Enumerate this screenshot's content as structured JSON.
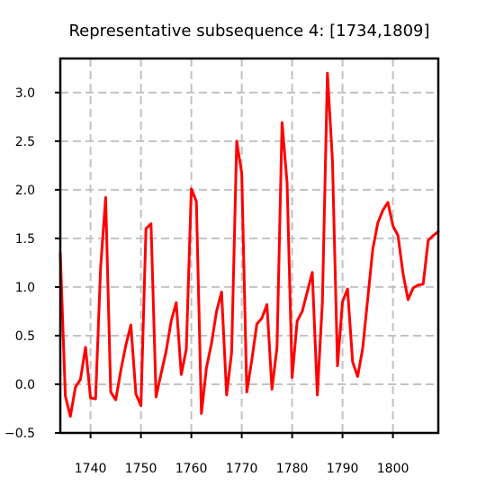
{
  "chart_data": {
    "type": "line",
    "title": "Representative subsequence 4: [1734,1809]",
    "xlabel": "",
    "ylabel": "",
    "xlim": [
      1734,
      1809
    ],
    "ylim": [
      -0.5,
      3.35
    ],
    "x_ticks": [
      1740,
      1750,
      1760,
      1770,
      1780,
      1790,
      1800
    ],
    "x_tick_labels": [
      "1740",
      "1750",
      "1760",
      "1770",
      "1780",
      "1790",
      "1800"
    ],
    "y_ticks": [
      -0.5,
      0.0,
      0.5,
      1.0,
      1.5,
      2.0,
      2.5,
      3.0
    ],
    "y_tick_labels": [
      "−0.5",
      "0.0",
      "0.5",
      "1.0",
      "1.5",
      "2.0",
      "2.5",
      "3.0"
    ],
    "grid": true,
    "series": [
      {
        "color": "#ff0000",
        "x": [
          1734,
          1735,
          1736,
          1737,
          1738,
          1739,
          1740,
          1741,
          1742,
          1743,
          1744,
          1745,
          1746,
          1747,
          1748,
          1749,
          1750,
          1751,
          1752,
          1753,
          1754,
          1755,
          1756,
          1757,
          1758,
          1759,
          1760,
          1761,
          1762,
          1763,
          1764,
          1765,
          1766,
          1767,
          1768,
          1769,
          1770,
          1771,
          1772,
          1773,
          1774,
          1775,
          1776,
          1777,
          1778,
          1779,
          1780,
          1781,
          1782,
          1783,
          1784,
          1785,
          1786,
          1787,
          1788,
          1789,
          1790,
          1791,
          1792,
          1793,
          1794,
          1795,
          1796,
          1797,
          1798,
          1799,
          1800,
          1801,
          1802,
          1803,
          1804,
          1805,
          1806,
          1807,
          1808,
          1809
        ],
        "y": [
          1.35,
          -0.12,
          -0.33,
          -0.03,
          0.05,
          0.38,
          -0.14,
          -0.15,
          1.2,
          1.92,
          -0.08,
          -0.16,
          0.14,
          0.4,
          0.61,
          -0.1,
          -0.22,
          1.6,
          1.65,
          -0.13,
          0.11,
          0.34,
          0.65,
          0.84,
          0.1,
          0.36,
          2.01,
          1.88,
          -0.3,
          0.17,
          0.42,
          0.75,
          0.95,
          -0.11,
          0.33,
          2.5,
          2.17,
          -0.08,
          0.25,
          0.62,
          0.68,
          0.82,
          -0.05,
          0.38,
          2.69,
          2.07,
          0.07,
          0.65,
          0.75,
          0.95,
          1.15,
          -0.11,
          0.84,
          3.2,
          2.3,
          0.19,
          0.85,
          0.98,
          0.23,
          0.08,
          0.37,
          0.88,
          1.39,
          1.66,
          1.79,
          1.87,
          1.63,
          1.53,
          1.14,
          0.87,
          0.99,
          1.02,
          1.03,
          1.48,
          1.53,
          1.57
        ]
      }
    ]
  }
}
